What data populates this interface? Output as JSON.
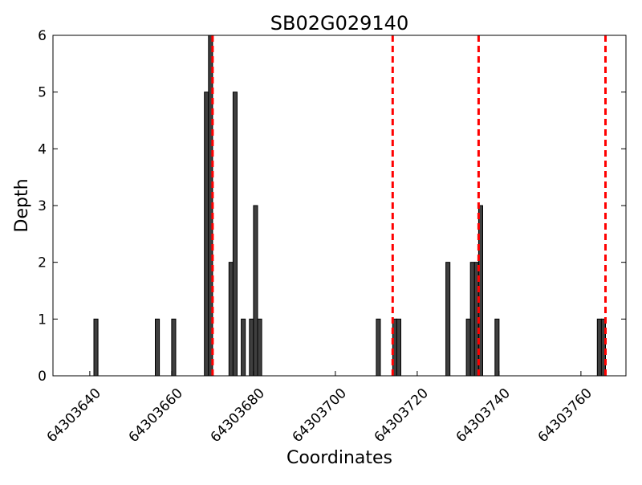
{
  "chart_data": {
    "type": "bar",
    "title": "SB02G029140",
    "xlabel": "Coordinates",
    "ylabel": "Depth",
    "xlim": [
      64303631,
      64303771
    ],
    "ylim": [
      0,
      6
    ],
    "x_ticks": [
      64303640,
      64303660,
      64303680,
      64303700,
      64303720,
      64303740,
      64303760
    ],
    "y_ticks": [
      0,
      1,
      2,
      3,
      4,
      5,
      6
    ],
    "bar_color": "#3f3f3f",
    "marker_color": "#ff0000",
    "grid": false,
    "bars": [
      {
        "x": 64303641,
        "y": 1
      },
      {
        "x": 64303656,
        "y": 1
      },
      {
        "x": 64303660,
        "y": 1
      },
      {
        "x": 64303668,
        "y": 5
      },
      {
        "x": 64303669,
        "y": 6
      },
      {
        "x": 64303674,
        "y": 2
      },
      {
        "x": 64303675,
        "y": 5
      },
      {
        "x": 64303677,
        "y": 1
      },
      {
        "x": 64303679,
        "y": 1
      },
      {
        "x": 64303680,
        "y": 3
      },
      {
        "x": 64303681,
        "y": 1
      },
      {
        "x": 64303710,
        "y": 1
      },
      {
        "x": 64303714,
        "y": 1
      },
      {
        "x": 64303715,
        "y": 1
      },
      {
        "x": 64303727,
        "y": 2
      },
      {
        "x": 64303732,
        "y": 1
      },
      {
        "x": 64303733,
        "y": 2
      },
      {
        "x": 64303734,
        "y": 2
      },
      {
        "x": 64303735,
        "y": 3
      },
      {
        "x": 64303739,
        "y": 1
      },
      {
        "x": 64303764,
        "y": 1
      },
      {
        "x": 64303765,
        "y": 1
      }
    ],
    "markers": [
      64303670,
      64303714,
      64303735,
      64303766
    ]
  }
}
